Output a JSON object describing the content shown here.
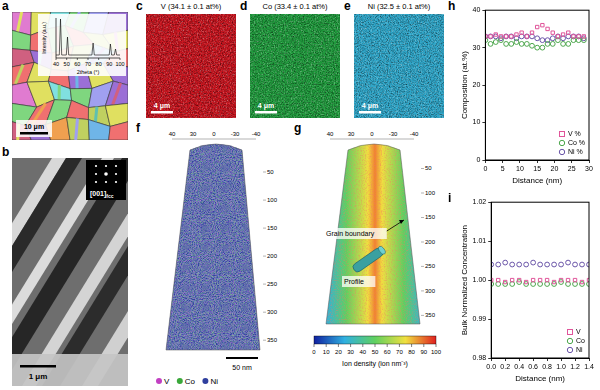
{
  "panels": {
    "a": {
      "letter": "a",
      "inset": {
        "y_label": "Intensity (a.u.)",
        "x_label": "2theta (°)",
        "xticks": [
          40,
          50,
          60,
          70,
          80,
          90,
          100
        ]
      },
      "scale_bar": "10 μm"
    },
    "b": {
      "letter": "b",
      "zone_axis": {
        "text": "[001]",
        "subscript": "fcc"
      },
      "scale_bar": "1 μm"
    },
    "c": {
      "letter": "c",
      "title": "V (34.1 ± 0.1 at%)",
      "color": "#c8141e",
      "scale_bar": "4 μm"
    },
    "d": {
      "letter": "d",
      "title": "Co (33.4 ± 0.1 at%)",
      "color": "#1f9a3c",
      "scale_bar": "4 μm"
    },
    "e": {
      "letter": "e",
      "title": "Ni (32.5 ± 0.1 at%)",
      "color": "#2ea6c9",
      "scale_bar": "4 μm"
    },
    "f": {
      "letter": "f",
      "top_ticks": [
        40,
        30,
        0,
        -30,
        -40
      ],
      "z_ticks": [
        50,
        100,
        150,
        200,
        250,
        300,
        350
      ],
      "scale_bar": "50 nm",
      "elements": [
        {
          "name": "V",
          "color": "#c23fc2"
        },
        {
          "name": "Co",
          "color": "#3aa83a"
        },
        {
          "name": "Ni",
          "color": "#2f3f9e"
        }
      ]
    },
    "g": {
      "letter": "g",
      "top_ticks": [
        40,
        30,
        0,
        -30,
        -40
      ],
      "z_ticks": [
        50,
        100,
        150,
        200,
        250,
        300,
        350
      ],
      "annotations": [
        "Grain boundary",
        "Profile"
      ],
      "colorbar": {
        "label": "Ion density (ion nm⁻³)",
        "range": [
          0,
          100
        ],
        "ticks": [
          0,
          10,
          20,
          30,
          40,
          50,
          60,
          70,
          80,
          90,
          100
        ]
      }
    }
  },
  "chart_data": [
    {
      "panel_label": "h",
      "type": "scatter",
      "x_label": "Distance (nm)",
      "y_label": "Composition (at.%)",
      "x": [
        0,
        1.5,
        3,
        4.5,
        6,
        7.5,
        9,
        10.5,
        12,
        13.5,
        15,
        16.5,
        18,
        19.5,
        21,
        22.5,
        24,
        25.5,
        27,
        28.5
      ],
      "xlim": [
        0,
        30
      ],
      "xticks": [
        0,
        5,
        10,
        15,
        20,
        25,
        30
      ],
      "ylim": [
        0,
        40
      ],
      "yticks": [
        0,
        10,
        20,
        30,
        40
      ],
      "grid": false,
      "legend": "lower right",
      "series": [
        {
          "name": "V %",
          "color": "#e0559a",
          "marker": "square",
          "values": [
            33,
            33,
            33.5,
            33,
            33,
            33,
            33.5,
            34,
            33,
            34,
            35.5,
            36,
            35,
            34,
            33,
            33.5,
            34,
            33,
            33,
            33
          ]
        },
        {
          "name": "Co %",
          "color": "#4ca64c",
          "marker": "circle",
          "values": [
            32,
            31,
            31.5,
            32,
            31,
            31,
            31.5,
            31,
            31,
            30.5,
            30,
            30,
            31,
            31,
            32,
            31,
            31,
            32,
            32,
            32
          ]
        },
        {
          "name": "Ni %",
          "color": "#6a55a8",
          "marker": "circle",
          "values": [
            33,
            33,
            33,
            32.5,
            33,
            33,
            32.5,
            33,
            33,
            33,
            32.5,
            32,
            32,
            32.5,
            33,
            32.5,
            33,
            33,
            33,
            32.5
          ]
        }
      ]
    },
    {
      "panel_label": "i",
      "type": "scatter",
      "x_label": "Distance (nm)",
      "y_label": "Bulk Normalized Concentration",
      "x": [
        0,
        0.1,
        0.2,
        0.3,
        0.4,
        0.5,
        0.6,
        0.7,
        0.8,
        0.9,
        1.0,
        1.1,
        1.2,
        1.3,
        1.4
      ],
      "xlim": [
        0,
        1.4
      ],
      "xticks": [
        {
          "value": 0,
          "label": "0.0"
        },
        0.2,
        0.4,
        0.6,
        0.8,
        {
          "value": 1,
          "label": "1.0"
        },
        1.2,
        1.4
      ],
      "ylim": [
        0.98,
        1.02
      ],
      "yticks": [
        0.98,
        0.99,
        {
          "value": 1,
          "label": "1.00"
        },
        1.01,
        1.02
      ],
      "grid": false,
      "legend": "lower right",
      "series": [
        {
          "name": "V",
          "color": "#e0559a",
          "marker": "square",
          "values": [
            1.0,
            1.0,
            0.9995,
            1.0,
            1.0,
            0.9995,
            1.0,
            1.0,
            1.0,
            0.9995,
            1.0,
            1.0,
            1.0,
            0.9995,
            1.0
          ]
        },
        {
          "name": "Co",
          "color": "#4ca64c",
          "marker": "circle",
          "values": [
            0.999,
            0.999,
            0.999,
            0.999,
            0.9995,
            0.999,
            0.999,
            0.999,
            0.999,
            0.999,
            0.9995,
            0.999,
            0.999,
            0.999,
            0.999
          ]
        },
        {
          "name": "Ni",
          "color": "#6a55a8",
          "marker": "circle",
          "values": [
            1.004,
            1.004,
            1.0045,
            1.004,
            1.004,
            1.004,
            1.0045,
            1.004,
            1.004,
            1.004,
            1.004,
            1.0045,
            1.004,
            1.004,
            1.004
          ]
        }
      ]
    }
  ]
}
